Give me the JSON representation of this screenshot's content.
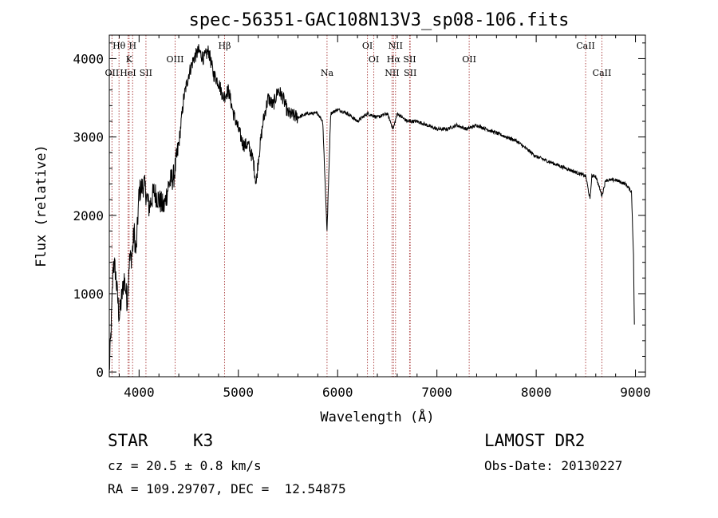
{
  "chart_data": {
    "type": "line",
    "title": "spec-56351-GAC108N13V3_sp08-106.fits",
    "xlabel": "Wavelength (Å)",
    "ylabel": "Flux (relative)",
    "xlim": [
      3700,
      9100
    ],
    "ylim": [
      -60,
      4300
    ],
    "xticks": [
      4000,
      5000,
      6000,
      7000,
      8000,
      9000
    ],
    "yticks": [
      0,
      1000,
      2000,
      3000,
      4000
    ],
    "grid": false,
    "spectrum_anchors": [
      [
        3700,
        0
      ],
      [
        3720,
        600
      ],
      [
        3740,
        1400
      ],
      [
        3760,
        1300
      ],
      [
        3780,
        1000
      ],
      [
        3800,
        700
      ],
      [
        3820,
        900
      ],
      [
        3850,
        1200
      ],
      [
        3880,
        900
      ],
      [
        3900,
        1400
      ],
      [
        3930,
        1500
      ],
      [
        3950,
        1800
      ],
      [
        3970,
        1500
      ],
      [
        4000,
        2300
      ],
      [
        4050,
        2400
      ],
      [
        4100,
        2100
      ],
      [
        4150,
        2300
      ],
      [
        4200,
        2200
      ],
      [
        4250,
        2100
      ],
      [
        4300,
        2400
      ],
      [
        4350,
        2500
      ],
      [
        4400,
        2900
      ],
      [
        4450,
        3500
      ],
      [
        4500,
        3800
      ],
      [
        4550,
        4000
      ],
      [
        4600,
        4100
      ],
      [
        4650,
        4000
      ],
      [
        4700,
        4100
      ],
      [
        4750,
        3800
      ],
      [
        4800,
        3700
      ],
      [
        4850,
        3500
      ],
      [
        4900,
        3600
      ],
      [
        4950,
        3300
      ],
      [
        5000,
        3100
      ],
      [
        5050,
        2900
      ],
      [
        5100,
        2900
      ],
      [
        5150,
        2700
      ],
      [
        5180,
        2400
      ],
      [
        5200,
        2700
      ],
      [
        5250,
        3200
      ],
      [
        5300,
        3500
      ],
      [
        5350,
        3400
      ],
      [
        5400,
        3600
      ],
      [
        5450,
        3500
      ],
      [
        5500,
        3300
      ],
      [
        5600,
        3250
      ],
      [
        5700,
        3300
      ],
      [
        5800,
        3300
      ],
      [
        5850,
        3200
      ],
      [
        5893,
        1800
      ],
      [
        5930,
        3300
      ],
      [
        6000,
        3350
      ],
      [
        6100,
        3300
      ],
      [
        6200,
        3200
      ],
      [
        6300,
        3300
      ],
      [
        6400,
        3250
      ],
      [
        6500,
        3300
      ],
      [
        6560,
        3100
      ],
      [
        6600,
        3300
      ],
      [
        6700,
        3200
      ],
      [
        6800,
        3200
      ],
      [
        6900,
        3150
      ],
      [
        7000,
        3100
      ],
      [
        7100,
        3100
      ],
      [
        7200,
        3150
      ],
      [
        7300,
        3100
      ],
      [
        7400,
        3150
      ],
      [
        7500,
        3100
      ],
      [
        7600,
        3050
      ],
      [
        7700,
        3000
      ],
      [
        7800,
        2950
      ],
      [
        7900,
        2850
      ],
      [
        8000,
        2750
      ],
      [
        8100,
        2700
      ],
      [
        8200,
        2650
      ],
      [
        8300,
        2600
      ],
      [
        8400,
        2550
      ],
      [
        8500,
        2500
      ],
      [
        8542,
        2200
      ],
      [
        8560,
        2500
      ],
      [
        8600,
        2500
      ],
      [
        8662,
        2250
      ],
      [
        8700,
        2450
      ],
      [
        8800,
        2450
      ],
      [
        8900,
        2400
      ],
      [
        8960,
        2300
      ],
      [
        8980,
        1500
      ],
      [
        8990,
        500
      ]
    ],
    "spectral_lines": [
      {
        "label": "Hθ",
        "x": 3798,
        "row": 0
      },
      {
        "label": "H",
        "x": 3935,
        "row": 0
      },
      {
        "label": "K",
        "x": 3900,
        "row": 1
      },
      {
        "label": "OII",
        "x": 3727,
        "row": 2
      },
      {
        "label": "HeI",
        "x": 3889,
        "row": 2
      },
      {
        "label": "SII",
        "x": 4069,
        "row": 2
      },
      {
        "label": "OIII",
        "x": 4363,
        "row": 1
      },
      {
        "label": "Hβ",
        "x": 4861,
        "row": 0
      },
      {
        "label": "Na",
        "x": 5893,
        "row": 2
      },
      {
        "label": "OI",
        "x": 6300,
        "row": 0
      },
      {
        "label": "OI",
        "x": 6364,
        "row": 1
      },
      {
        "label": "NII",
        "x": 6583,
        "row": 0
      },
      {
        "label": "Hα",
        "x": 6563,
        "row": 1
      },
      {
        "label": "SII",
        "x": 6725,
        "row": 1
      },
      {
        "label": "NII",
        "x": 6548,
        "row": 2
      },
      {
        "label": "SII",
        "x": 6731,
        "row": 2
      },
      {
        "label": "OII",
        "x": 7325,
        "row": 1
      },
      {
        "label": "CaII",
        "x": 8498,
        "row": 0
      },
      {
        "label": "CaII",
        "x": 8662,
        "row": 2
      }
    ]
  },
  "info": {
    "object_class": "STAR",
    "subclass": "K3",
    "survey": "LAMOST DR2",
    "velocity": "cz = 20.5 ± 0.8 km/s",
    "obs_date": "Obs-Date: 20130227",
    "coords": "RA = 109.29707, DEC =  12.54875"
  },
  "colors": {
    "spectrum": "#000000",
    "line_markers": "#b04a4a"
  }
}
